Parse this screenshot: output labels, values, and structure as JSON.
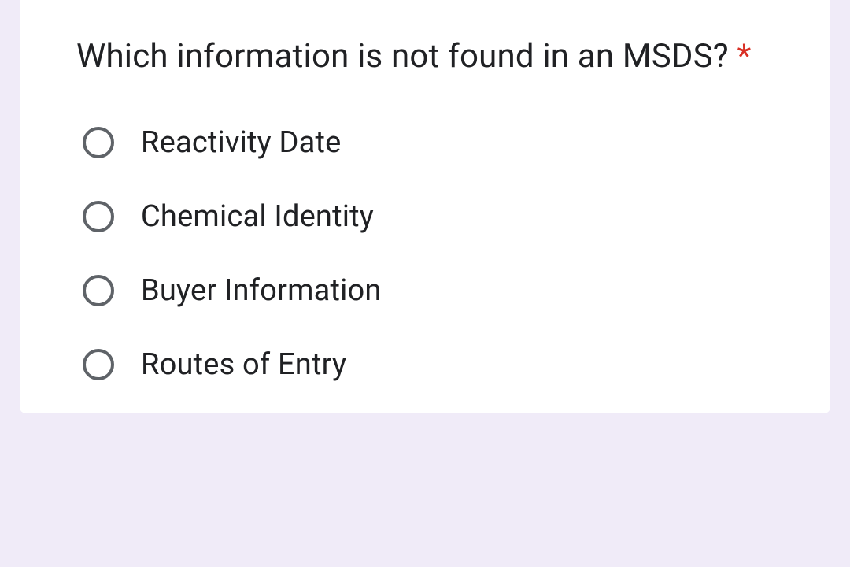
{
  "question": {
    "text": "Which information is not found in an MSDS?",
    "required_marker": "*"
  },
  "options": [
    {
      "label": "Reactivity Date"
    },
    {
      "label": "Chemical Identity"
    },
    {
      "label": "Buyer Information"
    },
    {
      "label": "Routes of Entry"
    }
  ],
  "colors": {
    "background": "#f0ebf8",
    "card_background": "#ffffff",
    "text": "#202124",
    "required": "#d93025",
    "radio_border": "#5f6368"
  }
}
